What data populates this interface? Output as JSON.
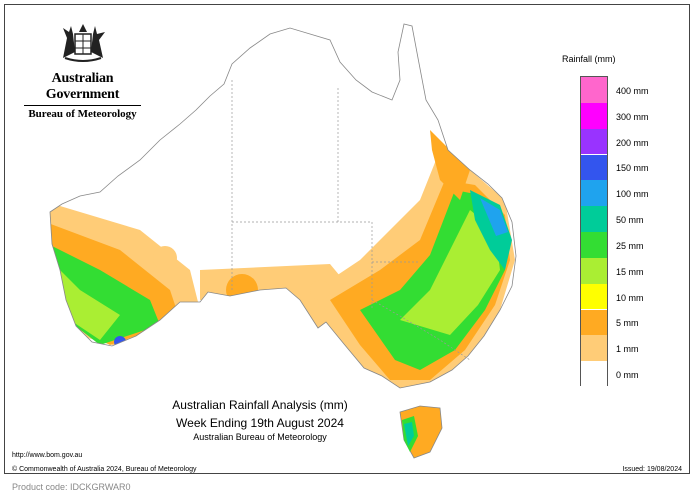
{
  "header": {
    "government": "Australian Government",
    "bureau": "Bureau of Meteorology"
  },
  "legend": {
    "title": "Rainfall (mm)",
    "items": [
      {
        "label": "400 mm",
        "color": "#ff66cc"
      },
      {
        "label": "300 mm",
        "color": "#ff00ff"
      },
      {
        "label": "200 mm",
        "color": "#9933ff"
      },
      {
        "label": "150 mm",
        "color": "#3355ee"
      },
      {
        "label": "100 mm",
        "color": "#1fa3ee"
      },
      {
        "label": "50 mm",
        "color": "#00cc99"
      },
      {
        "label": "25 mm",
        "color": "#33dd33"
      },
      {
        "label": "15 mm",
        "color": "#aaee33"
      },
      {
        "label": "10 mm",
        "color": "#ffff00"
      },
      {
        "label": "5 mm",
        "color": "#ffaa22"
      },
      {
        "label": "1 mm",
        "color": "#ffcc77"
      },
      {
        "label": "0 mm",
        "color": "#ffffff"
      }
    ]
  },
  "map": {
    "title_line1": "Australian Rainfall Analysis (mm)",
    "title_line2": "Week Ending 19th August 2024",
    "title_line3": "Australian Bureau of Meteorology"
  },
  "footer": {
    "url": "http://www.bom.gov.au",
    "copyright": "© Commonwealth of Australia 2024, Bureau of Meteorology",
    "issued": "Issued: 19/08/2024",
    "product_code": "Product code: IDCKGRWAR0"
  }
}
